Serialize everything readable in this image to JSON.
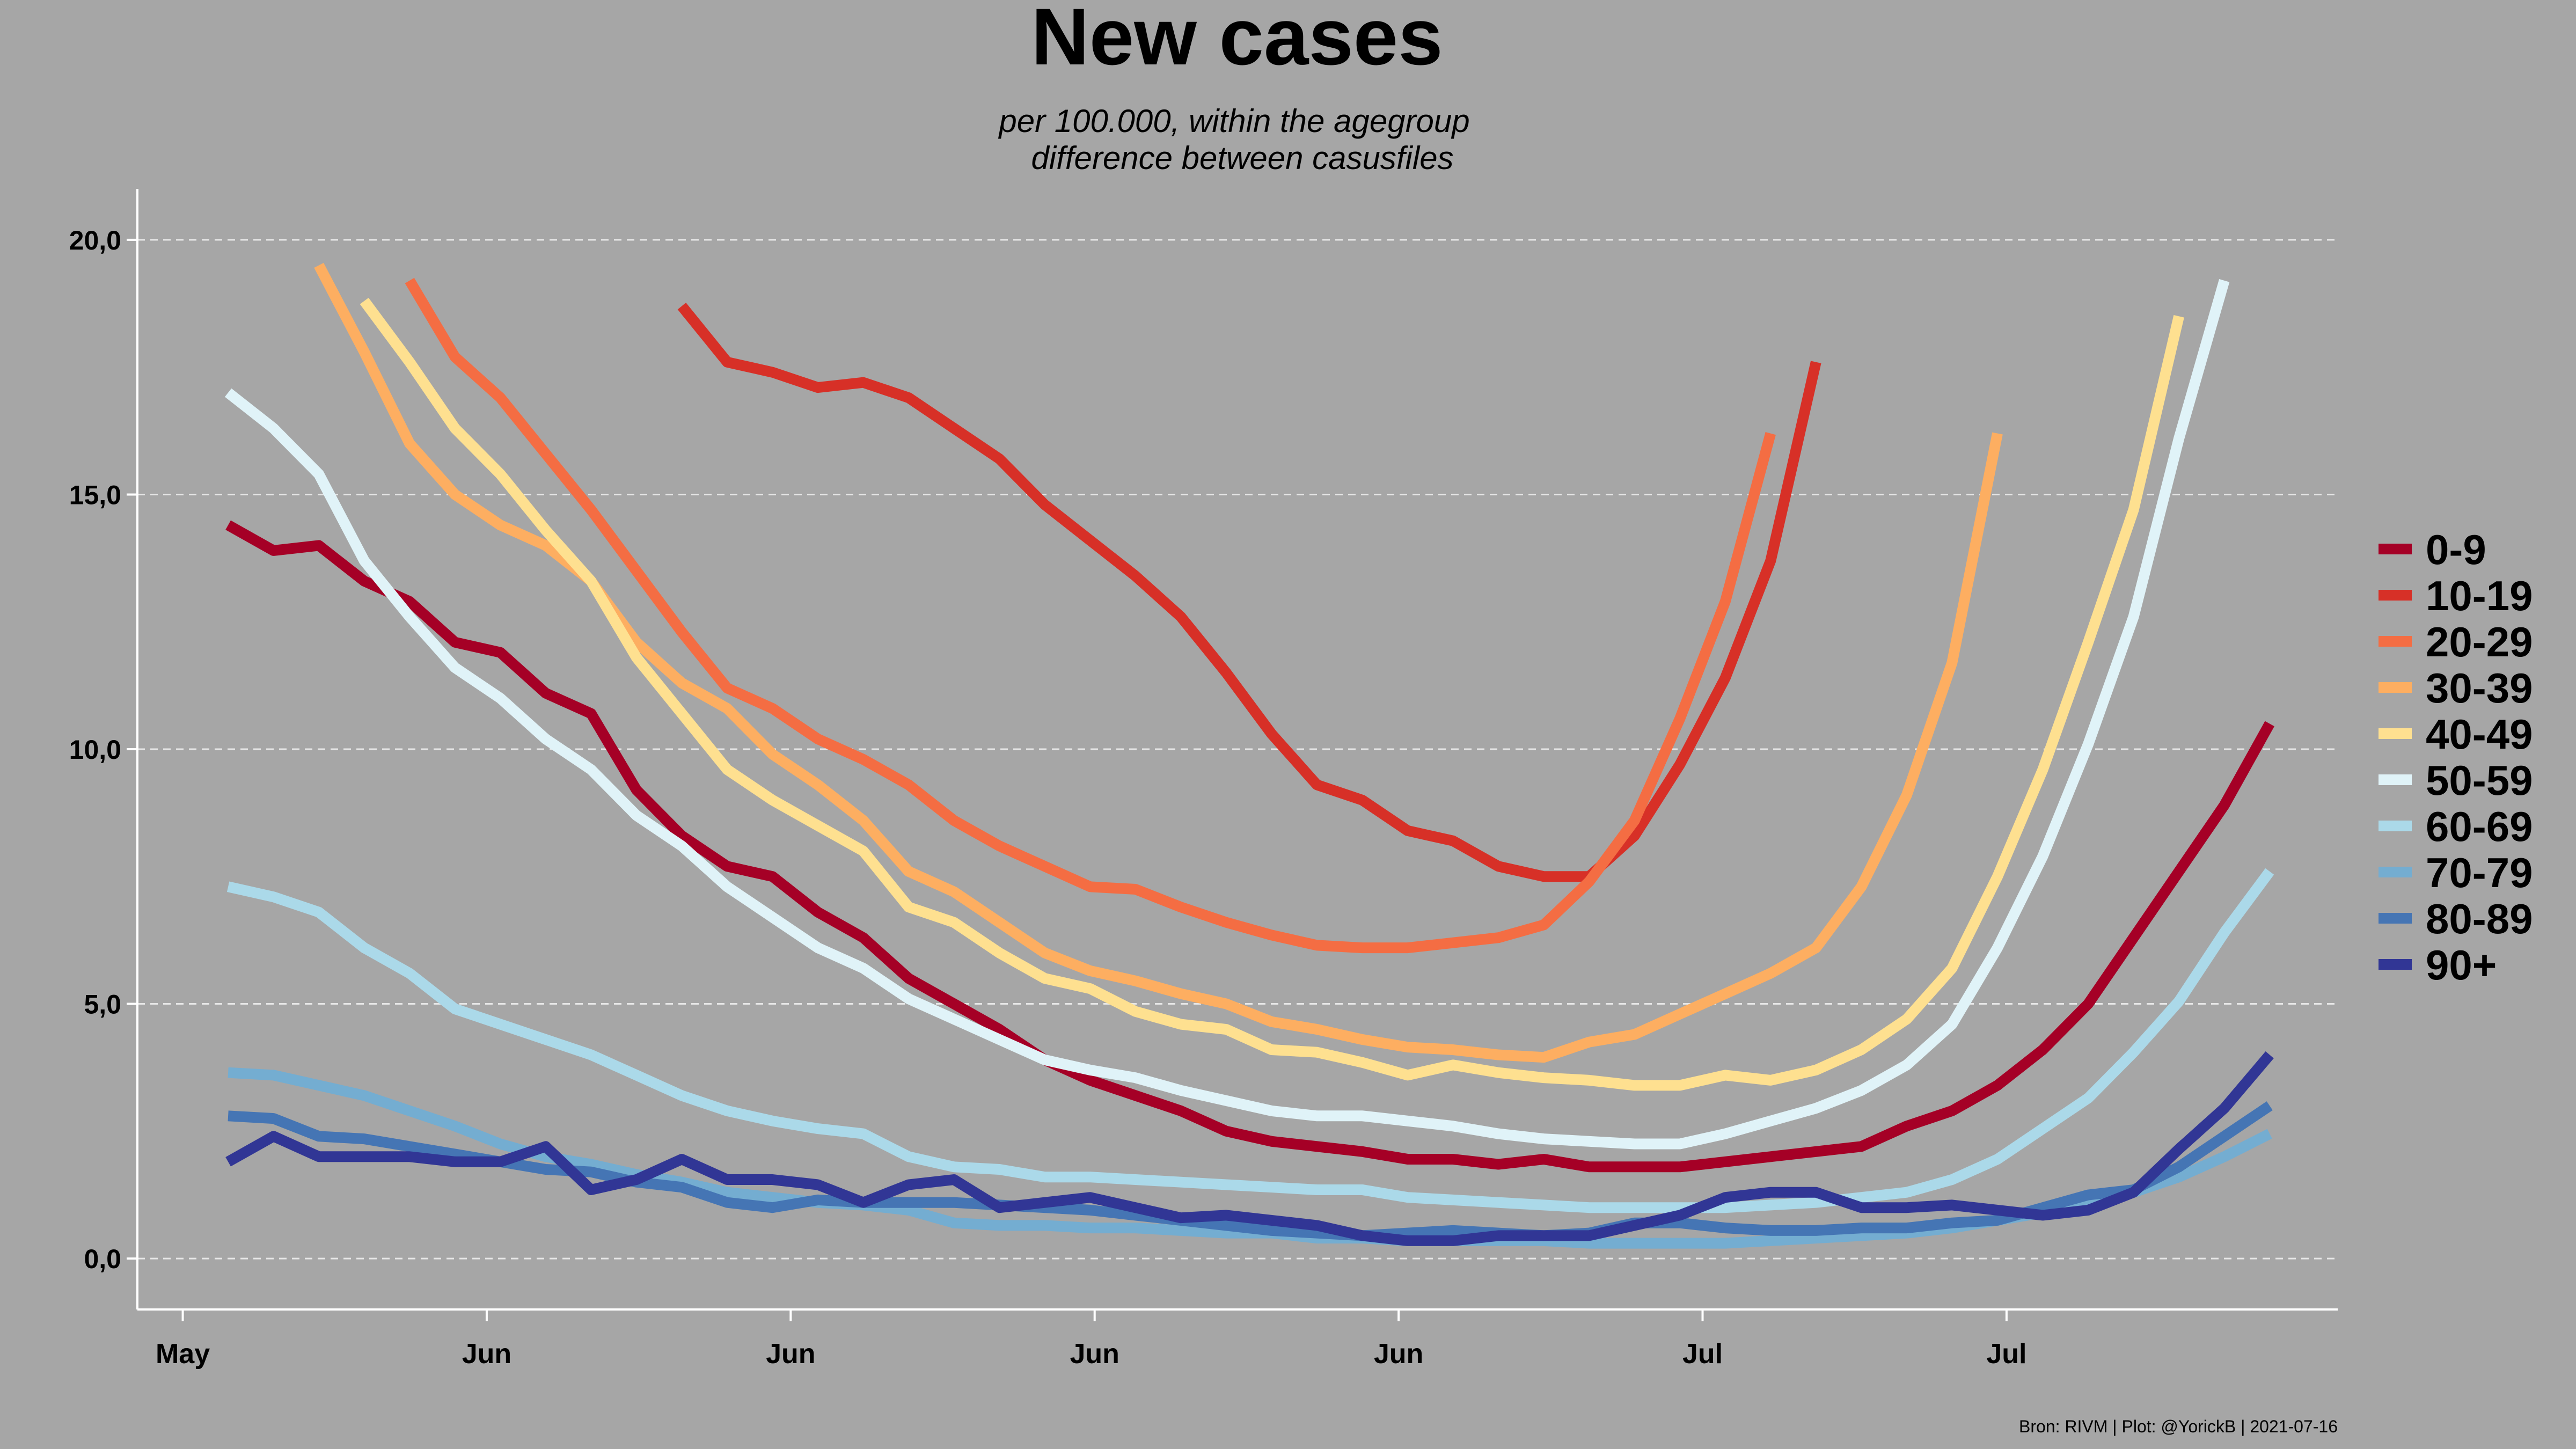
{
  "chart_data": {
    "type": "line",
    "title": "New cases",
    "subtitle_line1": "per 100.000, within the agegroup",
    "subtitle_line2": "difference between casusfiles",
    "caption": "Bron: RIVM | Plot: @YorickB  |  2021-07-16",
    "ylim": [
      -1,
      21
    ],
    "x_range": [
      -1,
      47.5
    ],
    "y_ticks": [
      {
        "value": 0,
        "label": "0,0"
      },
      {
        "value": 5,
        "label": "5,0"
      },
      {
        "value": 10,
        "label": "10,0"
      },
      {
        "value": 15,
        "label": "15,0"
      },
      {
        "value": 20,
        "label": "20,0"
      }
    ],
    "x_ticks": [
      {
        "value": 0,
        "label": "May"
      },
      {
        "value": 6.7,
        "label": "Jun"
      },
      {
        "value": 13.4,
        "label": "Jun"
      },
      {
        "value": 20.1,
        "label": "Jun"
      },
      {
        "value": 26.8,
        "label": "Jun"
      },
      {
        "value": 33.5,
        "label": "Jul"
      },
      {
        "value": 40.2,
        "label": "Jul"
      }
    ],
    "grid": "horizontal dashed",
    "legend_position": "right",
    "x": [
      1,
      2,
      3,
      4,
      5,
      6,
      7,
      8,
      9,
      10,
      11,
      12,
      13,
      14,
      15,
      16,
      17,
      18,
      19,
      20,
      21,
      22,
      23,
      24,
      25,
      26,
      27,
      28,
      29,
      30,
      31,
      32,
      33,
      34,
      35,
      36,
      37,
      38,
      39,
      40,
      41,
      42,
      43,
      44,
      45,
      46
    ],
    "series": [
      {
        "name": "0-9",
        "color": "#a50026",
        "values": [
          14.4,
          13.9,
          14.0,
          13.3,
          12.9,
          12.1,
          11.9,
          11.1,
          10.7,
          9.2,
          8.3,
          7.7,
          7.5,
          6.8,
          6.3,
          5.5,
          5.0,
          4.5,
          3.9,
          3.5,
          3.2,
          2.9,
          2.5,
          2.3,
          2.2,
          2.1,
          1.95,
          1.95,
          1.85,
          1.95,
          1.8,
          1.8,
          1.8,
          1.9,
          2.0,
          2.1,
          2.2,
          2.6,
          2.9,
          3.4,
          4.1,
          5.0,
          6.3,
          7.6,
          8.9,
          10.5
        ]
      },
      {
        "name": "10-19",
        "color": "#d73027",
        "values": [
          null,
          null,
          null,
          null,
          null,
          null,
          null,
          null,
          null,
          null,
          18.7,
          17.6,
          17.4,
          17.1,
          17.2,
          16.9,
          16.3,
          15.7,
          14.8,
          14.1,
          13.4,
          12.6,
          11.5,
          10.3,
          9.3,
          9.0,
          8.4,
          8.2,
          7.7,
          7.5,
          7.5,
          8.3,
          9.7,
          11.4,
          13.7,
          17.6,
          null,
          null,
          null,
          null,
          null,
          null,
          null,
          null,
          null,
          null
        ]
      },
      {
        "name": "20-29",
        "color": "#f46d43",
        "values": [
          null,
          null,
          null,
          null,
          19.2,
          17.7,
          16.9,
          15.8,
          14.7,
          13.5,
          12.3,
          11.2,
          10.8,
          10.2,
          9.8,
          9.3,
          8.6,
          8.1,
          7.7,
          7.3,
          7.25,
          6.9,
          6.6,
          6.35,
          6.15,
          6.1,
          6.1,
          6.2,
          6.3,
          6.55,
          7.4,
          8.6,
          10.6,
          12.9,
          16.2,
          null,
          null,
          null,
          null,
          null,
          null,
          null,
          null,
          null,
          null,
          null
        ]
      },
      {
        "name": "30-39",
        "color": "#fdae61",
        "values": [
          null,
          null,
          19.5,
          17.8,
          16.0,
          15.0,
          14.4,
          14.0,
          13.3,
          12.1,
          11.3,
          10.8,
          9.9,
          9.3,
          8.6,
          7.6,
          7.2,
          6.6,
          6.0,
          5.65,
          5.45,
          5.2,
          5.0,
          4.65,
          4.5,
          4.3,
          4.15,
          4.1,
          4.0,
          3.95,
          4.25,
          4.4,
          4.8,
          5.2,
          5.6,
          6.1,
          7.3,
          9.1,
          11.7,
          16.2,
          null,
          null,
          null,
          null,
          null,
          null
        ]
      },
      {
        "name": "40-49",
        "color": "#fee090",
        "values": [
          null,
          null,
          null,
          18.8,
          17.6,
          16.3,
          15.4,
          14.3,
          13.3,
          11.8,
          10.7,
          9.6,
          9.0,
          8.5,
          8.0,
          6.9,
          6.6,
          6.0,
          5.5,
          5.3,
          4.85,
          4.6,
          4.5,
          4.1,
          4.05,
          3.85,
          3.6,
          3.8,
          3.65,
          3.55,
          3.5,
          3.4,
          3.4,
          3.6,
          3.5,
          3.7,
          4.1,
          4.7,
          5.7,
          7.5,
          9.6,
          12.1,
          14.7,
          18.5,
          null,
          null
        ]
      },
      {
        "name": "50-59",
        "color": "#e0f3f8",
        "values": [
          17.0,
          16.3,
          15.4,
          13.7,
          12.6,
          11.6,
          11.0,
          10.2,
          9.6,
          8.7,
          8.1,
          7.3,
          6.7,
          6.1,
          5.7,
          5.1,
          4.7,
          4.3,
          3.9,
          3.7,
          3.55,
          3.3,
          3.1,
          2.9,
          2.8,
          2.8,
          2.7,
          2.6,
          2.45,
          2.35,
          2.3,
          2.25,
          2.25,
          2.45,
          2.7,
          2.95,
          3.3,
          3.8,
          4.6,
          6.1,
          7.9,
          10.1,
          12.6,
          16.1,
          19.2,
          null
        ]
      },
      {
        "name": "60-69",
        "color": "#abd9e9",
        "values": [
          7.3,
          7.1,
          6.8,
          6.1,
          5.6,
          4.9,
          4.6,
          4.3,
          4.0,
          3.6,
          3.2,
          2.9,
          2.7,
          2.55,
          2.45,
          2.0,
          1.8,
          1.75,
          1.6,
          1.6,
          1.55,
          1.5,
          1.45,
          1.4,
          1.35,
          1.35,
          1.2,
          1.15,
          1.1,
          1.05,
          1.0,
          1.0,
          1.0,
          1.0,
          1.05,
          1.1,
          1.2,
          1.3,
          1.55,
          1.95,
          2.55,
          3.15,
          4.05,
          5.05,
          6.4,
          7.6
        ]
      },
      {
        "name": "70-79",
        "color": "#74add1",
        "values": [
          3.65,
          3.6,
          3.4,
          3.2,
          2.9,
          2.6,
          2.25,
          2.0,
          1.85,
          1.65,
          1.5,
          1.3,
          1.2,
          1.1,
          1.05,
          0.95,
          0.7,
          0.65,
          0.65,
          0.6,
          0.6,
          0.55,
          0.5,
          0.5,
          0.4,
          0.4,
          0.35,
          0.35,
          0.35,
          0.35,
          0.3,
          0.3,
          0.3,
          0.3,
          0.35,
          0.4,
          0.45,
          0.5,
          0.6,
          0.75,
          0.9,
          1.1,
          1.3,
          1.6,
          2.0,
          2.45
        ]
      },
      {
        "name": "80-89",
        "color": "#4575b4",
        "values": [
          2.8,
          2.75,
          2.4,
          2.35,
          2.2,
          2.05,
          1.9,
          1.75,
          1.7,
          1.5,
          1.4,
          1.1,
          1.0,
          1.15,
          1.1,
          1.1,
          1.1,
          1.05,
          1.0,
          0.95,
          0.85,
          0.75,
          0.65,
          0.55,
          0.5,
          0.45,
          0.5,
          0.55,
          0.5,
          0.45,
          0.5,
          0.7,
          0.7,
          0.6,
          0.55,
          0.55,
          0.6,
          0.6,
          0.7,
          0.75,
          1.0,
          1.25,
          1.35,
          1.8,
          2.4,
          3.0
        ]
      },
      {
        "name": "90+",
        "color": "#313695",
        "values": [
          1.9,
          2.4,
          2.0,
          2.0,
          2.0,
          1.9,
          1.9,
          2.2,
          1.35,
          1.55,
          1.95,
          1.55,
          1.55,
          1.45,
          1.1,
          1.45,
          1.55,
          1.0,
          1.1,
          1.2,
          1.0,
          0.8,
          0.85,
          0.75,
          0.65,
          0.45,
          0.35,
          0.35,
          0.45,
          0.45,
          0.45,
          0.65,
          0.85,
          1.2,
          1.3,
          1.3,
          1.0,
          1.0,
          1.05,
          0.95,
          0.85,
          0.95,
          1.3,
          2.15,
          2.95,
          4.0
        ]
      }
    ]
  }
}
